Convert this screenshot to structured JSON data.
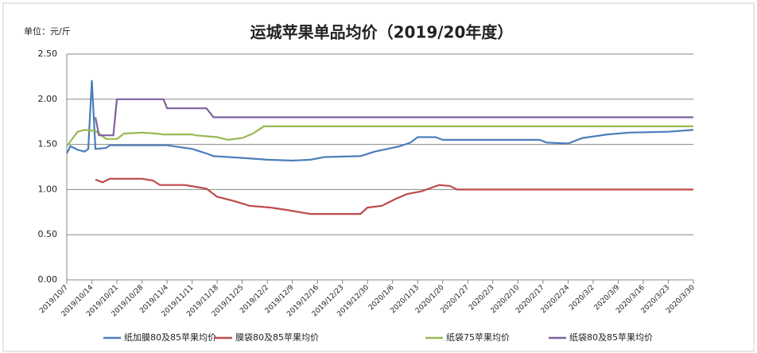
{
  "chart_data": {
    "type": "line",
    "title": "运城苹果单品均价（2019/20年度）",
    "y_label": "单位：元/斤",
    "ylim": [
      0,
      2.5
    ],
    "yticks": [
      {
        "value": 0,
        "label": "0.00"
      },
      {
        "value": 0.5,
        "label": "0.50"
      },
      {
        "value": 1,
        "label": "1.00"
      },
      {
        "value": 1.5,
        "label": "1.50"
      },
      {
        "value": 2,
        "label": "2.00"
      },
      {
        "value": 2.5,
        "label": "2.50"
      }
    ],
    "xlim": [
      "2019/10/7",
      "2020/3/30"
    ],
    "xticks": [
      "2019/10/7",
      "2019/10/14",
      "2019/10/21",
      "2019/10/28",
      "2019/11/4",
      "2019/11/11",
      "2019/11/18",
      "2019/11/25",
      "2019/12/2",
      "2019/12/9",
      "2019/12/16",
      "2019/12/23",
      "2019/12/30",
      "2020/1/6",
      "2020/1/13",
      "2020/1/20",
      "2020/1/27",
      "2020/2/3",
      "2020/2/10",
      "2020/2/17",
      "2020/2/24",
      "2020/3/2",
      "2020/3/9",
      "2020/3/16",
      "2020/3/23",
      "2020/3/30"
    ],
    "grid": true,
    "legend": "bottom",
    "series": [
      {
        "name": "纸加膜80及85苹果均价",
        "color": "#4a7ebb",
        "x": [
          "2019/10/7",
          "2019/10/8",
          "2019/10/10",
          "2019/10/12",
          "2019/10/13",
          "2019/10/14",
          "2019/10/15",
          "2019/10/18",
          "2019/10/19",
          "2019/11/4",
          "2019/11/11",
          "2019/11/15",
          "2019/11/17",
          "2019/11/25",
          "2019/12/2",
          "2019/12/9",
          "2019/12/14",
          "2019/12/18",
          "2019/12/28",
          "2020/1/1",
          "2020/1/8",
          "2020/1/11",
          "2020/1/13",
          "2020/1/18",
          "2020/1/20",
          "2020/2/16",
          "2020/2/18",
          "2020/2/24",
          "2020/2/28",
          "2020/3/6",
          "2020/3/12",
          "2020/3/23",
          "2020/3/30"
        ],
        "values": [
          1.4,
          1.48,
          1.44,
          1.42,
          1.45,
          2.21,
          1.45,
          1.46,
          1.49,
          1.49,
          1.45,
          1.4,
          1.37,
          1.35,
          1.33,
          1.32,
          1.33,
          1.36,
          1.37,
          1.42,
          1.48,
          1.52,
          1.58,
          1.58,
          1.55,
          1.55,
          1.52,
          1.51,
          1.57,
          1.61,
          1.63,
          1.64,
          1.66
        ]
      },
      {
        "name": "膜袋80及85苹果均价",
        "color": "#be4b48",
        "x": [
          "2019/10/15",
          "2019/10/17",
          "2019/10/19",
          "2019/10/28",
          "2019/10/31",
          "2019/11/2",
          "2019/11/9",
          "2019/11/12",
          "2019/11/15",
          "2019/11/18",
          "2019/11/23",
          "2019/11/27",
          "2019/12/3",
          "2019/12/8",
          "2019/12/14",
          "2019/12/20",
          "2019/12/28",
          "2019/12/30",
          "2020/1/3",
          "2020/1/7",
          "2020/1/10",
          "2020/1/14",
          "2020/1/19",
          "2020/1/22",
          "2020/1/24",
          "2020/1/28",
          "2020/3/30"
        ],
        "values": [
          1.11,
          1.08,
          1.12,
          1.12,
          1.1,
          1.05,
          1.05,
          1.03,
          1.01,
          0.92,
          0.87,
          0.82,
          0.8,
          0.77,
          0.73,
          0.73,
          0.73,
          0.8,
          0.82,
          0.9,
          0.95,
          0.98,
          1.05,
          1.04,
          1.0,
          1.0,
          1.0
        ]
      },
      {
        "name": "纸袋75苹果均价",
        "color": "#98b954",
        "x": [
          "2019/10/7",
          "2019/10/10",
          "2019/10/12",
          "2019/10/15",
          "2019/10/18",
          "2019/10/21",
          "2019/10/23",
          "2019/10/28",
          "2019/11/1",
          "2019/11/3",
          "2019/11/11",
          "2019/11/12",
          "2019/11/18",
          "2019/11/21",
          "2019/11/25",
          "2019/11/28",
          "2019/12/1",
          "2020/3/30"
        ],
        "values": [
          1.48,
          1.64,
          1.66,
          1.65,
          1.56,
          1.56,
          1.62,
          1.63,
          1.62,
          1.61,
          1.61,
          1.6,
          1.58,
          1.55,
          1.57,
          1.62,
          1.7,
          1.7
        ]
      },
      {
        "name": "纸袋80及85苹果均价",
        "color": "#7d60a0",
        "x": [
          "2019/10/15",
          "2019/10/16",
          "2019/10/20",
          "2019/10/21",
          "2019/11/3",
          "2019/11/4",
          "2019/11/15",
          "2019/11/17",
          "2020/3/30"
        ],
        "values": [
          1.8,
          1.6,
          1.6,
          2.0,
          2.0,
          1.9,
          1.9,
          1.8,
          1.8
        ]
      }
    ]
  }
}
